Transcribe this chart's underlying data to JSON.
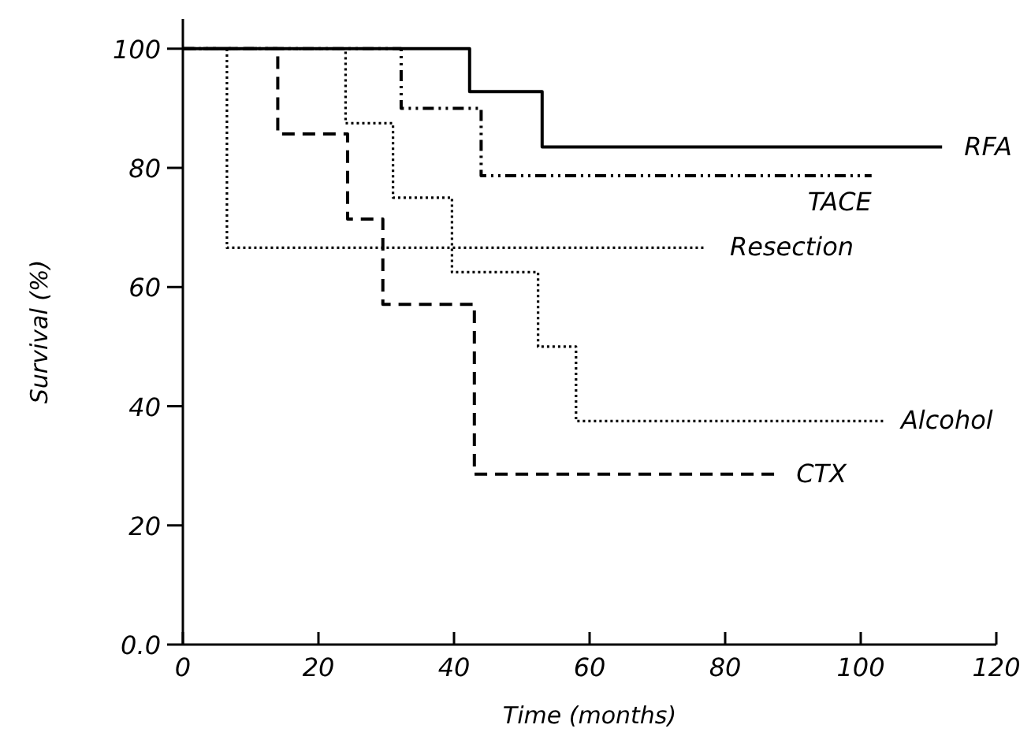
{
  "chart_data": {
    "type": "step",
    "xlabel": "Time (months)",
    "ylabel": "Survival (%)",
    "xlim": [
      0,
      120
    ],
    "ylim": [
      0,
      105
    ],
    "xticks": [
      0,
      20,
      40,
      60,
      80,
      100,
      120
    ],
    "yticks": [
      {
        "value": 0,
        "label": "0.0"
      },
      20,
      40,
      60,
      80,
      100
    ],
    "grid": false,
    "legend": false,
    "marker": "none",
    "series": [
      {
        "name": "RFA",
        "color": "#000000",
        "line_style": "solid",
        "x": [
          0,
          42.3,
          53,
          112
        ],
        "values": [
          100,
          92.8,
          83.5,
          83.5
        ]
      },
      {
        "name": "TACE",
        "color": "#000000",
        "line_style": "dashdot",
        "x": [
          0,
          32.2,
          44,
          101.6
        ],
        "values": [
          100,
          90,
          78.7,
          78.7
        ]
      },
      {
        "name": "Resection",
        "color": "#000000",
        "line_style": "dotted",
        "x": [
          0,
          6.5,
          77.2
        ],
        "values": [
          100,
          66.6,
          66.6
        ]
      },
      {
        "name": "Alcohol",
        "color": "#000000",
        "line_style": "dotted",
        "x": [
          0,
          24,
          31,
          39.7,
          52.4,
          58,
          103.6
        ],
        "values": [
          100,
          87.5,
          75,
          62.5,
          50,
          37.5,
          37.5
        ]
      },
      {
        "name": "CTX",
        "color": "#000000",
        "line_style": "dashed",
        "x": [
          0,
          14,
          24.3,
          29.5,
          43,
          87.7
        ],
        "values": [
          100,
          85.7,
          71.4,
          57.1,
          28.6,
          28.6
        ]
      }
    ]
  }
}
